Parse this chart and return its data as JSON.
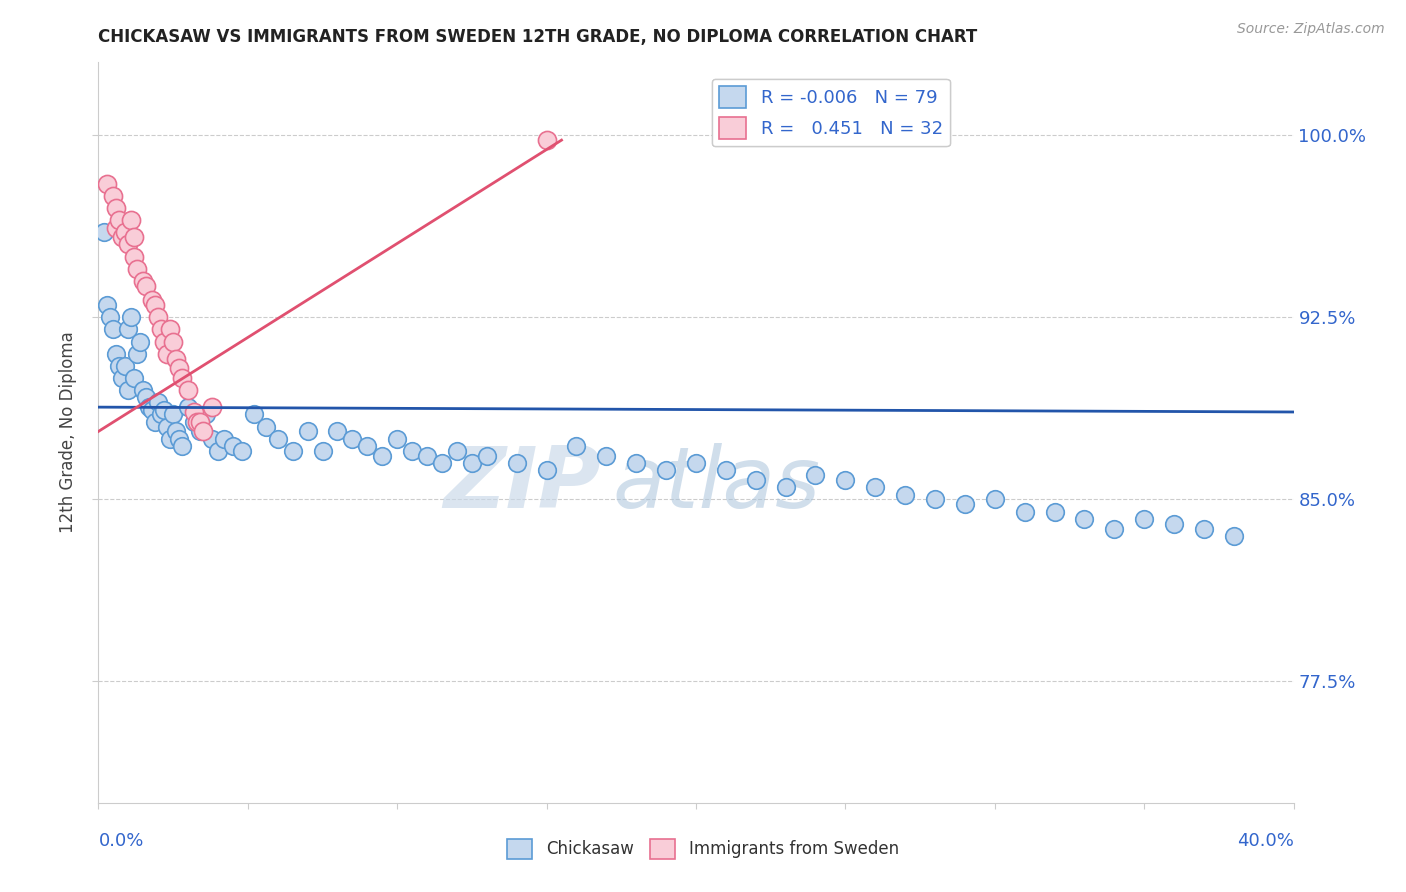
{
  "title": "CHICKASAW VS IMMIGRANTS FROM SWEDEN 12TH GRADE, NO DIPLOMA CORRELATION CHART",
  "source": "Source: ZipAtlas.com",
  "ylabel": "12th Grade, No Diploma",
  "y_tick_labels": [
    "77.5%",
    "85.0%",
    "92.5%",
    "100.0%"
  ],
  "y_tick_values": [
    0.775,
    0.85,
    0.925,
    1.0
  ],
  "x_range": [
    0.0,
    0.4
  ],
  "y_range": [
    0.725,
    1.03
  ],
  "legend_blue_r": "-0.006",
  "legend_blue_n": "79",
  "legend_pink_r": "0.451",
  "legend_pink_n": "32",
  "blue_color": "#c5d8ee",
  "blue_edge": "#5b9bd5",
  "pink_color": "#f9cdd8",
  "pink_edge": "#e87090",
  "trend_blue": "#2255aa",
  "trend_pink": "#e05070",
  "watermark_zip": "ZIP",
  "watermark_atlas": "atlas",
  "background": "#ffffff",
  "grid_color": "#cccccc",
  "blue_scatter_x": [
    0.002,
    0.003,
    0.004,
    0.005,
    0.006,
    0.007,
    0.008,
    0.009,
    0.01,
    0.01,
    0.011,
    0.012,
    0.013,
    0.014,
    0.015,
    0.016,
    0.017,
    0.018,
    0.019,
    0.02,
    0.021,
    0.022,
    0.023,
    0.024,
    0.025,
    0.026,
    0.027,
    0.028,
    0.03,
    0.032,
    0.034,
    0.036,
    0.038,
    0.04,
    0.042,
    0.045,
    0.048,
    0.052,
    0.056,
    0.06,
    0.065,
    0.07,
    0.075,
    0.08,
    0.085,
    0.09,
    0.095,
    0.1,
    0.105,
    0.11,
    0.115,
    0.12,
    0.125,
    0.13,
    0.14,
    0.15,
    0.16,
    0.17,
    0.18,
    0.19,
    0.2,
    0.21,
    0.22,
    0.23,
    0.24,
    0.25,
    0.26,
    0.27,
    0.28,
    0.29,
    0.3,
    0.31,
    0.32,
    0.33,
    0.34,
    0.35,
    0.36,
    0.37,
    0.38
  ],
  "blue_scatter_y": [
    0.96,
    0.93,
    0.925,
    0.92,
    0.91,
    0.905,
    0.9,
    0.905,
    0.895,
    0.92,
    0.925,
    0.9,
    0.91,
    0.915,
    0.895,
    0.892,
    0.888,
    0.887,
    0.882,
    0.89,
    0.885,
    0.887,
    0.88,
    0.875,
    0.885,
    0.878,
    0.875,
    0.872,
    0.888,
    0.882,
    0.878,
    0.885,
    0.875,
    0.87,
    0.875,
    0.872,
    0.87,
    0.885,
    0.88,
    0.875,
    0.87,
    0.878,
    0.87,
    0.878,
    0.875,
    0.872,
    0.868,
    0.875,
    0.87,
    0.868,
    0.865,
    0.87,
    0.865,
    0.868,
    0.865,
    0.862,
    0.872,
    0.868,
    0.865,
    0.862,
    0.865,
    0.862,
    0.858,
    0.855,
    0.86,
    0.858,
    0.855,
    0.852,
    0.85,
    0.848,
    0.85,
    0.845,
    0.845,
    0.842,
    0.838,
    0.842,
    0.84,
    0.838,
    0.835
  ],
  "pink_scatter_x": [
    0.003,
    0.005,
    0.006,
    0.006,
    0.007,
    0.008,
    0.009,
    0.01,
    0.011,
    0.012,
    0.012,
    0.013,
    0.015,
    0.016,
    0.018,
    0.019,
    0.02,
    0.021,
    0.022,
    0.023,
    0.024,
    0.025,
    0.026,
    0.027,
    0.028,
    0.03,
    0.032,
    0.033,
    0.034,
    0.035,
    0.038,
    0.15
  ],
  "pink_scatter_y": [
    0.98,
    0.975,
    0.97,
    0.962,
    0.965,
    0.958,
    0.96,
    0.955,
    0.965,
    0.95,
    0.958,
    0.945,
    0.94,
    0.938,
    0.932,
    0.93,
    0.925,
    0.92,
    0.915,
    0.91,
    0.92,
    0.915,
    0.908,
    0.904,
    0.9,
    0.895,
    0.886,
    0.882,
    0.882,
    0.878,
    0.888,
    0.998
  ],
  "blue_trend_x": [
    0.0,
    0.4
  ],
  "blue_trend_y": [
    0.888,
    0.886
  ],
  "pink_trend_x": [
    0.0,
    0.155
  ],
  "pink_trend_y": [
    0.878,
    0.998
  ]
}
